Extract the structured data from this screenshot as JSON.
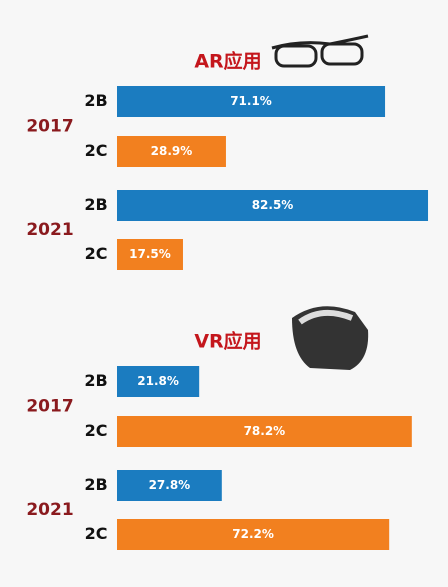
{
  "chart_data": [
    {
      "type": "bar",
      "title": "AR应用",
      "categories": [
        "2B",
        "2C"
      ],
      "colors": [
        "#1b7cc0",
        "#f2801f"
      ],
      "series": [
        {
          "name": "2017",
          "values": [
            71.1,
            28.9
          ],
          "value_labels": [
            "71.1%",
            "28.9%"
          ]
        },
        {
          "name": "2021",
          "values": [
            82.5,
            17.5
          ],
          "value_labels": [
            "82.5%",
            "17.5%"
          ]
        }
      ]
    },
    {
      "type": "bar",
      "title": "VR应用",
      "categories": [
        "2B",
        "2C"
      ],
      "colors": [
        "#1b7cc0",
        "#f2801f"
      ],
      "series": [
        {
          "name": "2017",
          "values": [
            21.8,
            78.2
          ],
          "value_labels": [
            "21.8%",
            "78.2%"
          ]
        },
        {
          "name": "2021",
          "values": [
            27.8,
            72.2
          ],
          "value_labels": [
            "27.8%",
            "72.2%"
          ]
        }
      ]
    }
  ]
}
